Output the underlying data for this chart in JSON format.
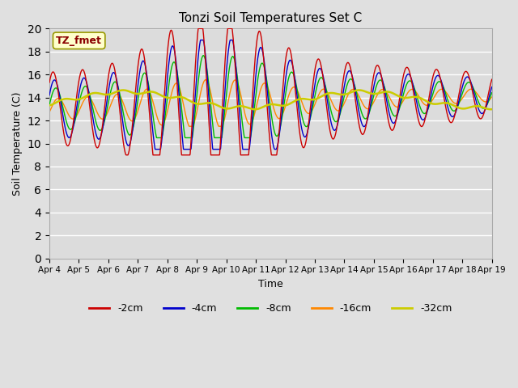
{
  "title": "Tonzi Soil Temperatures Set C",
  "xlabel": "Time",
  "ylabel": "Soil Temperature (C)",
  "ylim": [
    0,
    20
  ],
  "yticks": [
    0,
    2,
    4,
    6,
    8,
    10,
    12,
    14,
    16,
    18,
    20
  ],
  "fig_bg": "#e0e0e0",
  "plot_bg": "#dcdcdc",
  "annotation_text": "TZ_fmet",
  "annotation_color": "#8b0000",
  "annotation_bg": "#ffffcc",
  "series_colors": {
    "-2cm": "#cc0000",
    "-4cm": "#0000cc",
    "-8cm": "#00bb00",
    "-16cm": "#ff8800",
    "-32cm": "#cccc00"
  },
  "xtick_labels": [
    "Apr 4",
    "Apr 5",
    "Apr 6",
    "Apr 7",
    "Apr 8",
    "Apr 9",
    "Apr 10",
    "Apr 11",
    "Apr 12",
    "Apr 13",
    "Apr 14",
    "Apr 15",
    "Apr 16",
    "Apr 17",
    "Apr 18",
    "Apr 19"
  ]
}
